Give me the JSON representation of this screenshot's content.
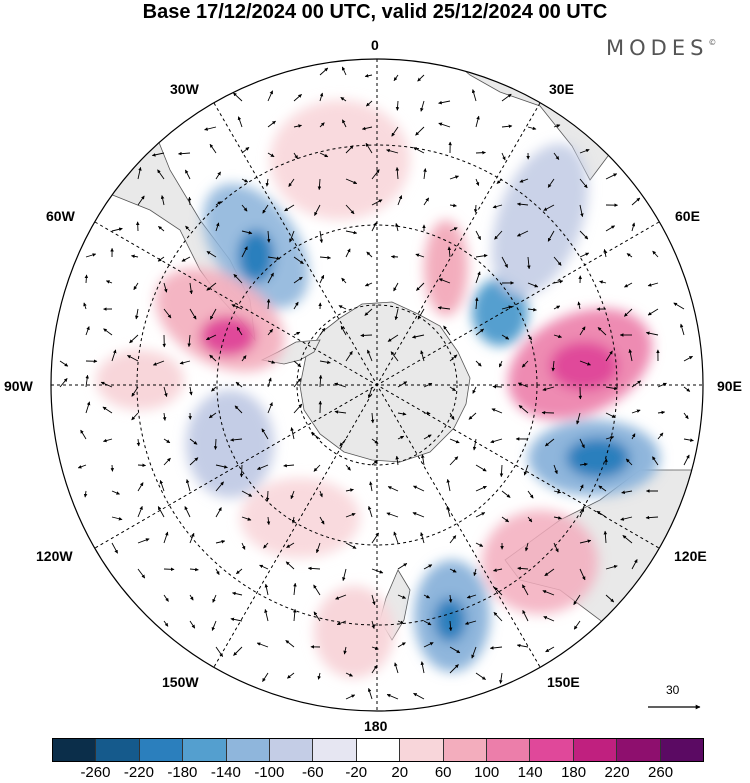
{
  "title": "Base 17/12/2024 00 UTC, valid 25/12/2024 00 UTC",
  "brand": "MODES",
  "brand_mark": "©",
  "longitude_labels": {
    "lon_0": "0",
    "lon_30e": "30E",
    "lon_60e": "60E",
    "lon_90e": "90E",
    "lon_120e": "120E",
    "lon_150e": "150E",
    "lon_180": "180",
    "lon_150w": "150W",
    "lon_120w": "120W",
    "lon_90w": "90W",
    "lon_60w": "60W",
    "lon_30w": "30W"
  },
  "reference_vector": {
    "value": "30"
  },
  "colorbar": {
    "ticks": [
      "-260",
      "-220",
      "-180",
      "-140",
      "-100",
      "-60",
      "-20",
      "20",
      "60",
      "100",
      "140",
      "180",
      "220",
      "260"
    ],
    "colors": [
      "#0b2e4a",
      "#155a8c",
      "#2b7fbd",
      "#549fcf",
      "#8fb6dc",
      "#c4cde6",
      "#e6e6f2",
      "#ffffff",
      "#f8d6da",
      "#f3adbd",
      "#ec7eaa",
      "#e0489a",
      "#c0207f",
      "#8e0f6e",
      "#5b0a63"
    ]
  },
  "map_colors": {
    "land": "#e9e9e9",
    "coast": "#555555",
    "grid": "#000000"
  }
}
